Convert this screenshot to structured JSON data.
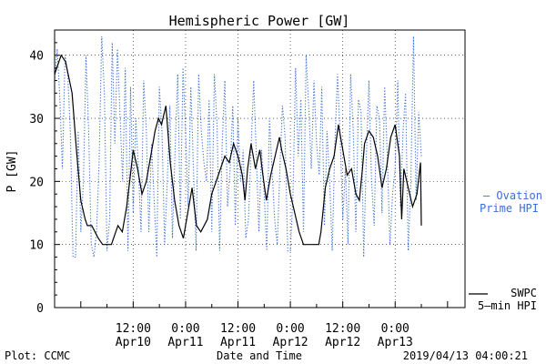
{
  "chart_data": {
    "type": "line",
    "title": "Hemispheric Power [GW]",
    "xlabel": "Date and Time",
    "ylabel": "P [GW]",
    "ylim": [
      0,
      44
    ],
    "yticks": [
      0,
      10,
      20,
      30,
      40
    ],
    "xlim": [
      -18,
      76
    ],
    "xticks": [
      {
        "x": 0,
        "time": "12:00",
        "date": "Apr10"
      },
      {
        "x": 12,
        "time": "0:00",
        "date": "Apr11"
      },
      {
        "x": 24,
        "time": "12:00",
        "date": "Apr11"
      },
      {
        "x": 36,
        "time": "0:00",
        "date": "Apr12"
      },
      {
        "x": 48,
        "time": "12:00",
        "date": "Apr12"
      },
      {
        "x": 60,
        "time": "0:00",
        "date": "Apr13"
      }
    ],
    "x_units": "hours from Apr10 12:00",
    "grid": true,
    "series": [
      {
        "name": "Ovation Prime HPI",
        "legend_lines": [
          "— Ovation",
          "Prime HPI"
        ],
        "color": "#3a6fd8",
        "style": "dotted",
        "x": [
          -18,
          -17.4,
          -16.8,
          -16.2,
          -15.6,
          -15,
          -14.4,
          -13.8,
          -13.2,
          -12.6,
          -12,
          -11.4,
          -10.8,
          -10.2,
          -9.6,
          -9,
          -8.4,
          -7.8,
          -7.2,
          -6.6,
          -6,
          -5.4,
          -4.8,
          -4.2,
          -3.6,
          -3,
          -2.4,
          -1.8,
          -1.2,
          -0.6,
          0,
          0.6,
          1.2,
          1.8,
          2.4,
          3,
          3.6,
          4.2,
          4.8,
          5.4,
          6,
          6.6,
          7.2,
          7.8,
          8.4,
          9,
          9.6,
          10.2,
          10.8,
          11.4,
          12,
          12.6,
          13.2,
          13.8,
          14.4,
          15,
          15.6,
          16.2,
          16.8,
          17.4,
          18,
          18.6,
          19.2,
          19.8,
          20.4,
          21,
          21.6,
          22.2,
          22.8,
          23.4,
          24,
          24.6,
          25.2,
          25.8,
          26.4,
          27,
          27.6,
          28.2,
          28.8,
          29.4,
          30,
          30.6,
          31.2,
          31.8,
          32.4,
          33,
          33.6,
          34.2,
          34.8,
          35.4,
          36,
          36.6,
          37.2,
          37.8,
          38.4,
          39,
          39.6,
          40.2,
          40.8,
          41.4,
          42,
          42.6,
          43.2,
          43.8,
          44.4,
          45,
          45.6,
          46.2,
          46.8,
          47.4,
          48,
          48.6,
          49.2,
          49.8,
          50.4,
          51,
          51.6,
          52.2,
          52.8,
          53.4,
          54,
          54.6,
          55.2,
          55.8,
          56.4,
          57,
          57.6,
          58.2,
          58.8,
          59.4,
          60,
          60.6,
          61.2,
          61.8,
          62.4,
          63,
          63.6,
          64.2,
          64.8,
          65.4,
          66
        ],
        "y": [
          36,
          41,
          33,
          22,
          40,
          37,
          28,
          8,
          8,
          28,
          12,
          20,
          40,
          28,
          10,
          8,
          12,
          23,
          43,
          34,
          9,
          14,
          42,
          26,
          41,
          30,
          20,
          38,
          9,
          35,
          15,
          30,
          22,
          12,
          36,
          28,
          12,
          26,
          17,
          8,
          35,
          28,
          10,
          20,
          32,
          11,
          25,
          37,
          14,
          38,
          28,
          16,
          35,
          22,
          9,
          37,
          28,
          23,
          20,
          33,
          12,
          37,
          29,
          9,
          26,
          36,
          16,
          22,
          32,
          13,
          30,
          20,
          25,
          11,
          14,
          25,
          36,
          24,
          12,
          25,
          18,
          9,
          30,
          22,
          14,
          10,
          22,
          32,
          27,
          9,
          9,
          18,
          38,
          24,
          33,
          12,
          40,
          32,
          22,
          36,
          26,
          21,
          35,
          13,
          28,
          20,
          9,
          26,
          37,
          27,
          14,
          22,
          10,
          37,
          28,
          12,
          33,
          31,
          8,
          24,
          36,
          20,
          13,
          32,
          30,
          15,
          35,
          24,
          10,
          18,
          22,
          36,
          16,
          28,
          34,
          9,
          20,
          43,
          17,
          31,
          24
        ]
      },
      {
        "name": "SWPC 5-min HPI",
        "legend_lines": [
          "SWPC",
          "5–min HPI"
        ],
        "color": "#000000",
        "style": "solid",
        "x": [
          -18,
          -16.5,
          -15.5,
          -14,
          -13,
          -12,
          -11,
          -10.5,
          -9.5,
          -8,
          -7,
          -6,
          -5,
          -4.5,
          -3.5,
          -2.5,
          -1.5,
          -0.8,
          0,
          1,
          2,
          3,
          4,
          5,
          5.8,
          6.5,
          7.5,
          8.5,
          9.5,
          10.5,
          11.5,
          12.5,
          13.5,
          14.5,
          15.5,
          17,
          18,
          19,
          20,
          21,
          22,
          23,
          24,
          25,
          25.6,
          26.2,
          27,
          28,
          29,
          29.7,
          30.5,
          31.5,
          32.5,
          33.5,
          34,
          35,
          36,
          37,
          38,
          39,
          40,
          41,
          42,
          42.5,
          43,
          44,
          45,
          46,
          47,
          48,
          49,
          50,
          51,
          51.8,
          52.5,
          53,
          54,
          55,
          56,
          57,
          58,
          59,
          60,
          61,
          61.5,
          62,
          63,
          64,
          65,
          65.8,
          66
        ],
        "y": [
          37,
          40,
          39,
          34,
          25,
          17,
          14,
          13,
          13,
          11,
          10,
          10,
          10,
          11,
          13,
          12,
          16,
          20,
          25,
          22,
          18,
          20,
          24,
          28,
          30,
          29,
          32,
          23,
          17,
          13,
          11,
          15,
          19,
          13,
          12,
          14,
          18,
          20,
          22,
          24,
          23,
          26,
          24,
          21,
          17,
          22,
          26,
          22,
          25,
          21,
          17,
          21,
          24,
          27,
          25,
          22,
          18,
          15,
          12,
          10,
          10,
          10,
          10,
          10,
          12,
          19,
          22,
          24,
          29,
          25,
          21,
          22,
          18,
          17,
          22,
          26,
          28,
          27,
          24,
          19,
          22,
          27,
          29,
          24,
          14,
          22,
          19,
          16,
          18,
          23,
          13
        ]
      }
    ]
  },
  "footer": {
    "left": "Plot: CCMC",
    "center": "Date and Time",
    "right": "2019/04/13 04:00:21"
  }
}
